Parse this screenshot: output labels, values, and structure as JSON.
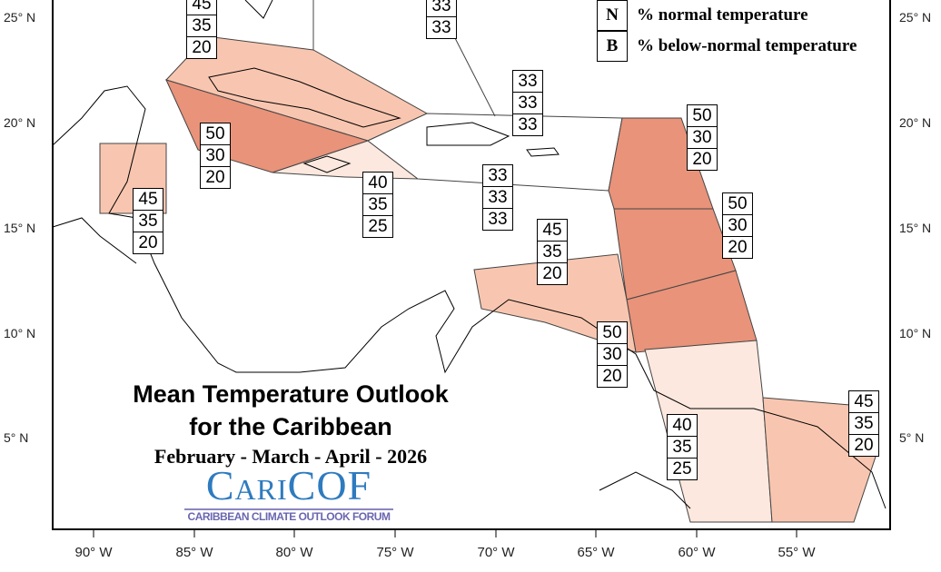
{
  "title": {
    "line1": "Mean Temperature Outlook",
    "line2": "for the Caribbean",
    "period": "February - March - April - 2026"
  },
  "logo": {
    "name": "CariCOF",
    "subtitle": "CARIBBEAN CLIMATE OUTLOOK FORUM",
    "color": "#2e7bbf"
  },
  "legend": [
    {
      "key": "N",
      "label": "% normal temperature"
    },
    {
      "key": "B",
      "label": "% below-normal temperature"
    }
  ],
  "lat_labels": [
    "25° N",
    "20° N",
    "15° N",
    "10° N",
    "5° N"
  ],
  "lon_labels": [
    "90° W",
    "85° W",
    "80° W",
    "75° W",
    "70° W",
    "65° W",
    "60° W",
    "55° W"
  ],
  "colors": {
    "light": "#f8c6b0",
    "dark": "#e8937a",
    "pale": "#fce8de"
  },
  "regions": [
    {
      "name": "bahamas-north",
      "values": [
        "45",
        "35",
        "20"
      ]
    },
    {
      "name": "bahamas-east",
      "values": [
        "33",
        "33"
      ]
    },
    {
      "name": "turks-caicos",
      "values": [
        "33",
        "33",
        "33"
      ]
    },
    {
      "name": "cuba-west",
      "values": [
        "50",
        "30",
        "20"
      ]
    },
    {
      "name": "belize",
      "values": [
        "45",
        "35",
        "20"
      ]
    },
    {
      "name": "jamaica",
      "values": [
        "40",
        "35",
        "25"
      ]
    },
    {
      "name": "hispaniola",
      "values": [
        "33",
        "33",
        "33"
      ]
    },
    {
      "name": "leeward-islands",
      "values": [
        "50",
        "30",
        "20"
      ]
    },
    {
      "name": "windward-islands",
      "values": [
        "50",
        "30",
        "20"
      ]
    },
    {
      "name": "abc-islands",
      "values": [
        "45",
        "35",
        "20"
      ]
    },
    {
      "name": "trinidad",
      "values": [
        "50",
        "30",
        "20"
      ]
    },
    {
      "name": "guyana",
      "values": [
        "40",
        "35",
        "25"
      ]
    },
    {
      "name": "suriname-french-guiana",
      "values": [
        "45",
        "35",
        "20"
      ]
    }
  ]
}
